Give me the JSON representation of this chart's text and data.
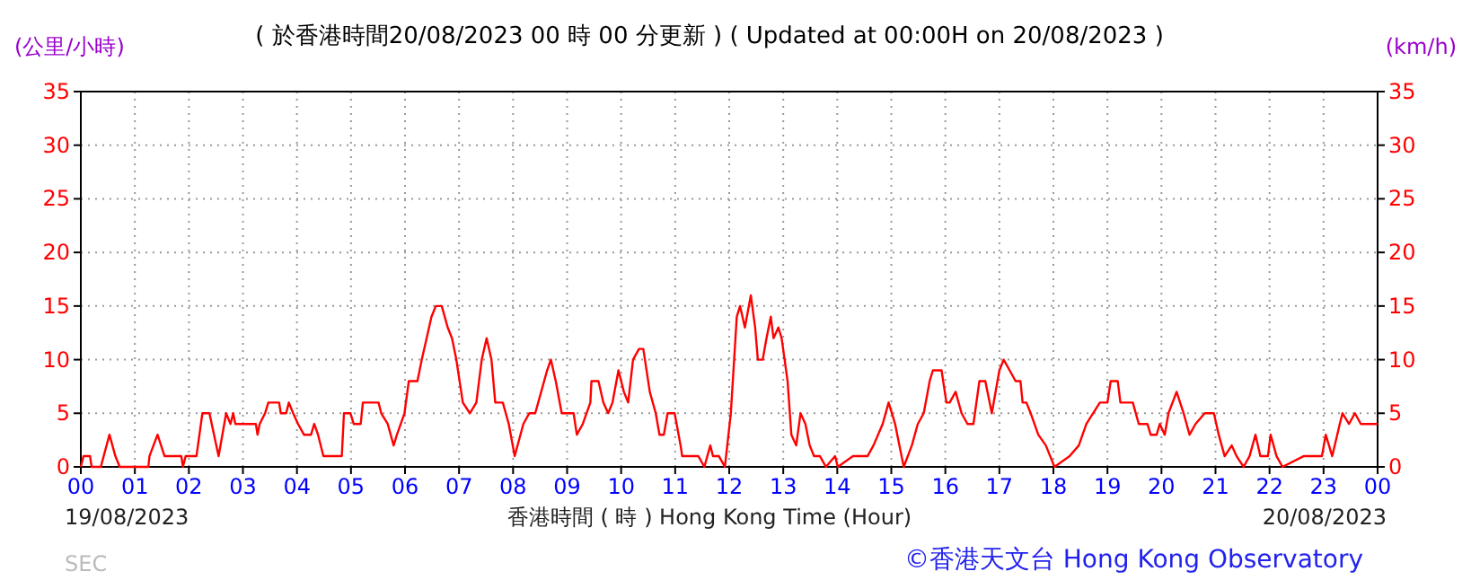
{
  "chart_data": {
    "type": "line",
    "title": "( 於香港時間20/08/2023 00 時 00 分更新 ) ( Updated at 00:00H on 20/08/2023 )",
    "xlabel": "香港時間 ( 時 ) Hong Kong Time (Hour)",
    "ylabel": "(公里/小時)",
    "y2label": "(km/h)",
    "annotations": [
      "19/08/2023",
      "20/08/2023",
      "SEC",
      "©香港天文台 Hong Kong Observatory"
    ],
    "xlim": [
      0,
      24
    ],
    "xticks": [
      {
        "value": 0,
        "label": "00"
      },
      {
        "value": 1,
        "label": "01"
      },
      {
        "value": 2,
        "label": "02"
      },
      {
        "value": 3,
        "label": "03"
      },
      {
        "value": 4,
        "label": "04"
      },
      {
        "value": 5,
        "label": "05"
      },
      {
        "value": 6,
        "label": "06"
      },
      {
        "value": 7,
        "label": "07"
      },
      {
        "value": 8,
        "label": "08"
      },
      {
        "value": 9,
        "label": "09"
      },
      {
        "value": 10,
        "label": "10"
      },
      {
        "value": 11,
        "label": "11"
      },
      {
        "value": 12,
        "label": "12"
      },
      {
        "value": 13,
        "label": "13"
      },
      {
        "value": 14,
        "label": "14"
      },
      {
        "value": 15,
        "label": "15"
      },
      {
        "value": 16,
        "label": "16"
      },
      {
        "value": 17,
        "label": "17"
      },
      {
        "value": 18,
        "label": "18"
      },
      {
        "value": 19,
        "label": "19"
      },
      {
        "value": 20,
        "label": "20"
      },
      {
        "value": 21,
        "label": "21"
      },
      {
        "value": 22,
        "label": "22"
      },
      {
        "value": 23,
        "label": "23"
      },
      {
        "value": 24,
        "label": "00"
      }
    ],
    "ylim": [
      0,
      35
    ],
    "yticks": [
      0,
      5,
      10,
      15,
      20,
      25,
      30,
      35
    ],
    "y2lim": [
      0,
      35
    ],
    "y2ticks": [
      0,
      5,
      10,
      15,
      20,
      25,
      30,
      35
    ],
    "grid": true,
    "marker": "none",
    "line_style": "solid",
    "series": [
      {
        "color": "#ff0000",
        "x": [
          0,
          0.05,
          0.17,
          0.2,
          0.37,
          0.53,
          0.64,
          0.72,
          1.25,
          1.27,
          1.42,
          1.55,
          1.86,
          1.89,
          1.94,
          2.14,
          2.25,
          2.38,
          2.55,
          2.69,
          2.77,
          2.82,
          2.86,
          3.24,
          3.27,
          3.31,
          3.41,
          3.47,
          3.67,
          3.7,
          3.8,
          3.85,
          3.93,
          4.02,
          4.13,
          4.26,
          4.32,
          4.39,
          4.49,
          4.83,
          4.87,
          4.99,
          5.05,
          5.18,
          5.22,
          5.51,
          5.56,
          5.68,
          5.79,
          5.85,
          5.99,
          6.07,
          6.23,
          6.31,
          6.4,
          6.49,
          6.57,
          6.68,
          6.79,
          6.87,
          6.95,
          7.07,
          7.2,
          7.32,
          7.42,
          7.51,
          7.6,
          7.67,
          7.81,
          7.92,
          8.03,
          8.19,
          8.3,
          8.41,
          8.52,
          8.63,
          8.7,
          8.79,
          8.9,
          9.12,
          9.18,
          9.29,
          9.43,
          9.45,
          9.58,
          9.67,
          9.76,
          9.84,
          9.95,
          10.05,
          10.13,
          10.22,
          10.33,
          10.41,
          10.53,
          10.64,
          10.71,
          10.79,
          10.86,
          10.99,
          11.1,
          11.13,
          11.43,
          11.54,
          11.65,
          11.7,
          11.81,
          11.92,
          12.03,
          12.14,
          12.2,
          12.29,
          12.4,
          12.48,
          12.53,
          12.62,
          12.69,
          12.77,
          12.82,
          12.91,
          12.97,
          13.08,
          13.15,
          13.24,
          13.32,
          13.41,
          13.49,
          13.57,
          13.68,
          13.79,
          13.96,
          14.01,
          14.29,
          14.56,
          14.67,
          14.84,
          14.95,
          15.07,
          15.23,
          15.38,
          15.49,
          15.6,
          15.71,
          15.77,
          15.93,
          16.02,
          16.08,
          16.19,
          16.3,
          16.41,
          16.52,
          16.63,
          16.74,
          16.86,
          17,
          17.08,
          17.19,
          17.3,
          17.39,
          17.43,
          17.5,
          17.58,
          17.72,
          17.86,
          18.02,
          18.3,
          18.47,
          18.61,
          18.86,
          19,
          19.06,
          19.19,
          19.24,
          19.47,
          19.58,
          19.74,
          19.8,
          19.91,
          19.97,
          20.06,
          20.13,
          20.28,
          20.41,
          20.52,
          20.63,
          20.8,
          20.97,
          21.06,
          21.17,
          21.3,
          21.39,
          21.52,
          21.63,
          21.74,
          21.83,
          21.97,
          22.02,
          22.13,
          22.24,
          22.63,
          22.97,
          23.04,
          23.16,
          23.3,
          23.35,
          23.47,
          23.58,
          23.69,
          23.97,
          24
        ],
        "values": [
          0,
          1,
          1,
          0,
          0,
          3,
          1,
          0,
          0,
          1,
          3,
          1,
          1,
          0,
          1,
          1,
          5,
          5,
          1,
          5,
          4,
          5,
          4,
          4,
          3,
          4,
          5,
          6,
          6,
          5,
          5,
          6,
          5,
          4,
          3,
          3,
          4,
          3,
          1,
          1,
          5,
          5,
          4,
          4,
          6,
          6,
          5,
          4,
          2,
          3,
          5,
          8,
          8,
          10,
          12,
          14,
          15,
          15,
          13,
          12,
          10,
          6,
          5,
          6,
          10,
          12,
          10,
          6,
          6,
          4,
          1,
          4,
          5,
          5,
          7,
          9,
          10,
          8,
          5,
          5,
          3,
          4,
          6,
          8,
          8,
          6,
          5,
          6,
          9,
          7,
          6,
          10,
          11,
          11,
          7,
          5,
          3,
          3,
          5,
          5,
          2,
          1,
          1,
          0,
          2,
          1,
          1,
          0,
          5,
          14,
          15,
          13,
          16,
          13,
          10,
          10,
          12,
          14,
          12,
          13,
          12,
          8,
          3,
          2,
          5,
          4,
          2,
          1,
          1,
          0,
          1,
          0,
          1,
          1,
          2,
          4,
          6,
          4,
          0,
          2,
          4,
          5,
          8,
          9,
          9,
          6,
          6,
          7,
          5,
          4,
          4,
          8,
          8,
          5,
          9,
          10,
          9,
          8,
          8,
          6,
          6,
          5,
          3,
          2,
          0,
          1,
          2,
          4,
          6,
          6,
          8,
          8,
          6,
          6,
          4,
          4,
          3,
          3,
          4,
          3,
          5,
          7,
          5,
          3,
          4,
          5,
          5,
          3,
          1,
          2,
          1,
          0,
          1,
          3,
          1,
          1,
          3,
          1,
          0,
          1,
          1,
          3,
          1,
          4,
          5,
          4,
          5,
          4,
          4,
          4
        ]
      }
    ]
  }
}
